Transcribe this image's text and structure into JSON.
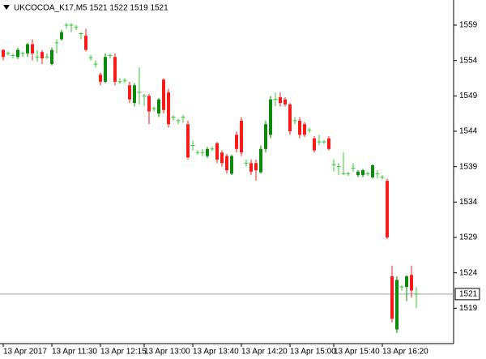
{
  "chart_data": {
    "type": "candlestick",
    "title": "UKCOCOA_K17,M5  1521 1522 1519 1521",
    "categories": [
      "13 Apr 2017",
      null,
      null,
      null,
      null,
      null,
      null,
      null,
      null,
      null,
      "13 Apr 11:30",
      null,
      null,
      null,
      null,
      null,
      null,
      null,
      null,
      null,
      "13 Apr 12:15",
      null,
      null,
      null,
      null,
      null,
      null,
      null,
      null,
      "13 Apr 13:00",
      null,
      null,
      null,
      null,
      null,
      null,
      null,
      null,
      null,
      "13 Apr 13:40",
      null,
      null,
      null,
      null,
      null,
      null,
      null,
      null,
      null,
      "13 Apr 14:20",
      null,
      null,
      null,
      null,
      null,
      null,
      null,
      null,
      null,
      "13 Apr 15:00",
      null,
      null,
      null,
      null,
      null,
      null,
      null,
      null,
      "13 Apr 15:40",
      null,
      null,
      null,
      null,
      null,
      null,
      null,
      null,
      null,
      "13 Apr 16:20",
      null,
      null,
      null,
      null,
      null,
      null,
      null
    ],
    "open": [
      1555.5,
      1555,
      1554.7,
      1554.5,
      1555,
      1555,
      1556.3,
      1554.5,
      1555.2,
      1554.5,
      1553.5,
      1556.5,
      1557,
      1559,
      1559,
      1558.7,
      1557.8,
      1557.5,
      1554.4,
      1553.5,
      1552,
      1551,
      1554.7,
      1554.5,
      1551,
      1551.2,
      1550.5,
      1548,
      1549.5,
      1549,
      1549,
      1547.2,
      1546.5,
      1551.3,
      1549.5,
      1546,
      1545.5,
      1546,
      1545,
      1542,
      1541,
      1541,
      1540.5,
      1541.5,
      1542.3,
      1541,
      1540.5,
      1538,
      1543.5,
      1545.5,
      1539.5,
      1539.5,
      1539.5,
      1538.2,
      1541.5,
      1543.5,
      1548.5,
      1548.8,
      1548.5,
      1547.8,
      1545.5,
      1545.5,
      1545,
      1544.2,
      1543,
      1542.5,
      1542.5,
      1543,
      1539.3,
      1539,
      1538,
      1538,
      1538.8,
      1537.8,
      1537.8,
      1538,
      1537.5,
      1538,
      1537.5,
      1537,
      1523.5,
      1516,
      1522,
      1522,
      1523.7,
      1521
    ],
    "high": [
      1555.6,
      1555.3,
      1555,
      1555.8,
      1555.3,
      1556.5,
      1557,
      1555.5,
      1555.5,
      1555,
      1555.8,
      1557,
      1558.3,
      1559.3,
      1559.3,
      1559,
      1558,
      1558.5,
      1554.8,
      1554,
      1552.3,
      1555,
      1555,
      1555,
      1551.5,
      1551.5,
      1551,
      1550.8,
      1553,
      1549.3,
      1549.3,
      1547.5,
      1548.7,
      1551.5,
      1550,
      1546.3,
      1545.8,
      1546.3,
      1545.5,
      1542.7,
      1541.3,
      1541.5,
      1541.8,
      1541.8,
      1542.5,
      1541.3,
      1540.8,
      1540.7,
      1544,
      1546,
      1540,
      1540,
      1540,
      1542,
      1545.5,
      1549,
      1549.5,
      1549.5,
      1548.8,
      1548,
      1546,
      1546,
      1545.3,
      1544.5,
      1543.3,
      1543.5,
      1542.8,
      1543.3,
      1540,
      1539.5,
      1541,
      1538.3,
      1539.5,
      1538.5,
      1538.7,
      1538.3,
      1539.3,
      1538.5,
      1537.8,
      1537.3,
      1525,
      1523.5,
      1522.3,
      1523.7,
      1525,
      1522
    ],
    "low": [
      1554,
      1554.7,
      1554.3,
      1554.2,
      1554.5,
      1554.5,
      1554,
      1553.8,
      1553.5,
      1554.2,
      1553.3,
      1555,
      1556.8,
      1558.5,
      1558,
      1558.3,
      1557,
      1555.3,
      1554,
      1553,
      1550.5,
      1550.8,
      1554.3,
      1550.5,
      1550.7,
      1550.8,
      1548,
      1547.5,
      1547.8,
      1547.5,
      1545,
      1546.8,
      1546,
      1546.5,
      1544.5,
      1545.5,
      1545,
      1545.2,
      1540,
      1541.3,
      1540.7,
      1540.5,
      1540.2,
      1541.2,
      1539.5,
      1539,
      1538,
      1537.8,
      1541,
      1540.5,
      1539,
      1537.8,
      1537,
      1538,
      1541,
      1543,
      1547.5,
      1547.5,
      1547.5,
      1543.5,
      1545,
      1543,
      1543.2,
      1543.8,
      1541,
      1542,
      1542.2,
      1541.3,
      1538.3,
      1537.8,
      1537.8,
      1537.7,
      1538.3,
      1537.5,
      1537.5,
      1537.7,
      1537.3,
      1537.3,
      1537.2,
      1528.8,
      1517,
      1515.5,
      1521.5,
      1520,
      1520.5,
      1519
    ],
    "close": [
      1554.5,
      1555,
      1554.7,
      1555.5,
      1555,
      1556.3,
      1555,
      1554.5,
      1554.3,
      1554.5,
      1555.5,
      1556.5,
      1558,
      1559,
      1559,
      1558.7,
      1557.8,
      1555.5,
      1554.4,
      1553.5,
      1551,
      1554.5,
      1554.7,
      1551,
      1551,
      1551.2,
      1548.5,
      1550.5,
      1549.5,
      1549,
      1546.8,
      1547.2,
      1548.5,
      1547,
      1545,
      1546,
      1545.5,
      1546,
      1540.3,
      1542,
      1541,
      1541,
      1541.5,
      1541.5,
      1540,
      1539.5,
      1538.5,
      1540.5,
      1541.5,
      1541,
      1539.5,
      1538.3,
      1538.5,
      1541.5,
      1545,
      1548.5,
      1548.5,
      1548,
      1547.8,
      1544,
      1545.5,
      1543.5,
      1543.5,
      1544.2,
      1541.3,
      1542.5,
      1542.5,
      1541.5,
      1539.3,
      1539,
      1538,
      1538,
      1538.8,
      1538.3,
      1538.5,
      1538,
      1539.2,
      1538,
      1537.5,
      1529,
      1517.5,
      1523,
      1522,
      1523.5,
      1521.5,
      1521
    ],
    "up_color": "#0b8a0b",
    "down_color": "#ff1a1a",
    "doji_color": "#33cc33",
    "last": 1521,
    "ylim": [
      1514,
      1562.55
    ],
    "yticks": [
      1559,
      1554,
      1549,
      1544,
      1539,
      1534,
      1529,
      1524,
      1519
    ]
  }
}
